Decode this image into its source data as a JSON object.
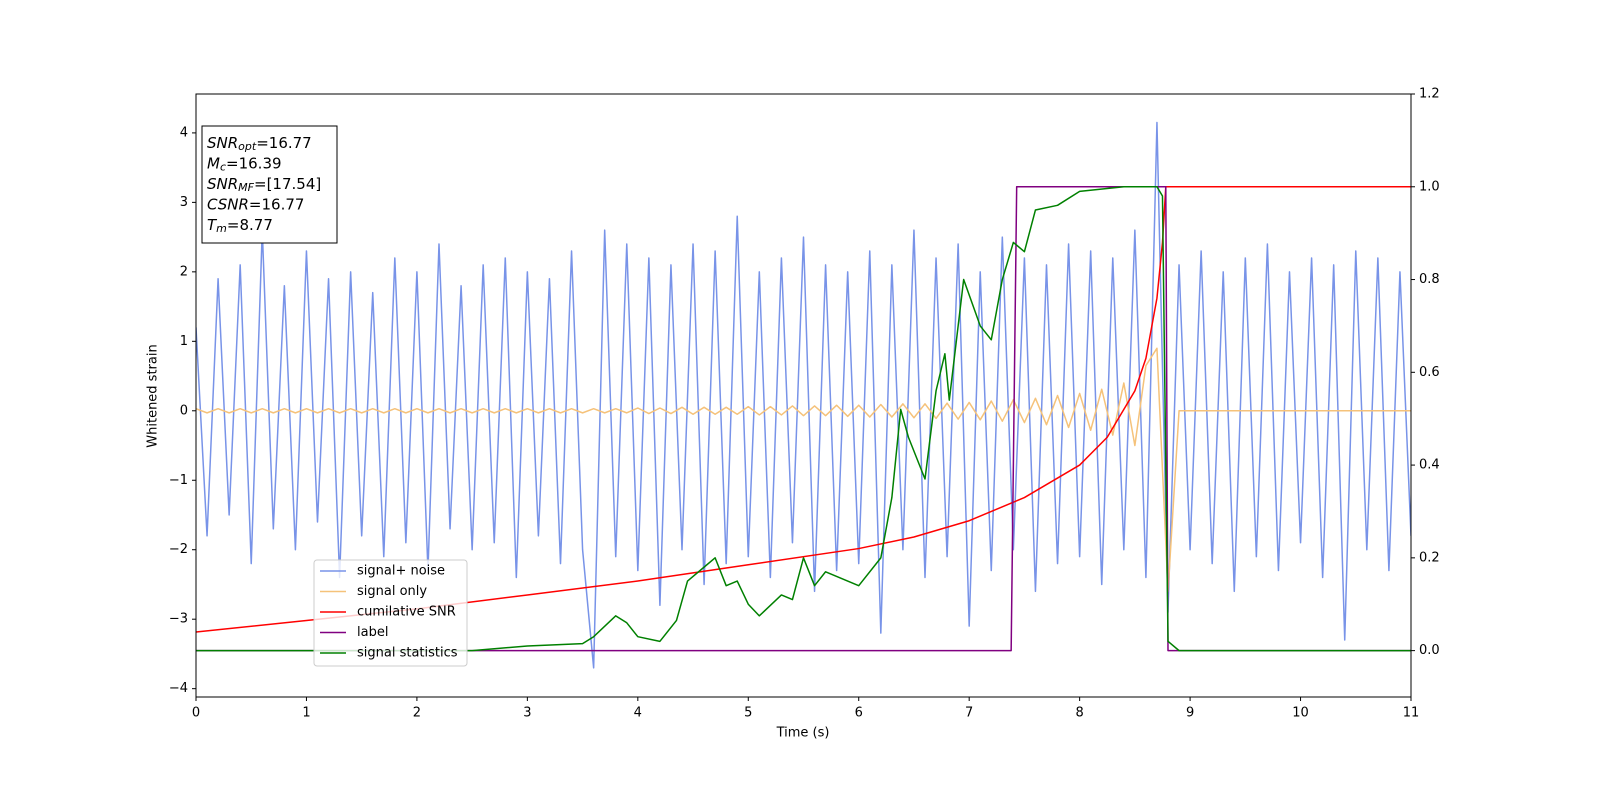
{
  "chart_data": {
    "type": "line",
    "xlabel": "Time (s)",
    "ylabel": "Whitened strain",
    "xlim": [
      0,
      11
    ],
    "ylim": [
      -4.12,
      4.56
    ],
    "y2lim": [
      -0.1,
      1.2
    ],
    "xticks": [
      0,
      1,
      2,
      3,
      4,
      5,
      6,
      7,
      8,
      9,
      10,
      11
    ],
    "yticks": [
      {
        "value": -4,
        "label": "−4"
      },
      {
        "value": -3,
        "label": "−3"
      },
      {
        "value": -2,
        "label": "−2"
      },
      {
        "value": -1,
        "label": "−1"
      },
      0,
      1,
      2,
      3,
      4
    ],
    "y2ticks": [
      {
        "value": 0,
        "label": "0.0"
      },
      {
        "value": 0.2,
        "label": "0.2"
      },
      {
        "value": 0.4,
        "label": "0.4"
      },
      {
        "value": 0.6,
        "label": "0.6"
      },
      {
        "value": 0.8,
        "label": "0.8"
      },
      {
        "value": 1.0,
        "label": "1.0"
      },
      {
        "value": 1.2,
        "label": "1.2"
      }
    ],
    "legend": "lower left",
    "x": [
      0,
      0.1,
      0.2,
      0.3,
      0.4,
      0.5,
      0.6,
      0.7,
      0.8,
      0.9,
      1,
      1.1,
      1.2,
      1.3,
      1.4,
      1.5,
      1.6,
      1.7,
      1.8,
      1.9,
      2,
      2.1,
      2.2,
      2.3,
      2.4,
      2.5,
      2.6,
      2.7,
      2.8,
      2.9,
      3,
      3.1,
      3.2,
      3.3,
      3.4,
      3.5,
      3.6,
      3.7,
      3.8,
      3.9,
      4,
      4.1,
      4.2,
      4.3,
      4.4,
      4.5,
      4.6,
      4.7,
      4.8,
      4.9,
      5,
      5.1,
      5.2,
      5.3,
      5.4,
      5.5,
      5.6,
      5.7,
      5.8,
      5.9,
      6,
      6.1,
      6.2,
      6.3,
      6.4,
      6.5,
      6.6,
      6.7,
      6.8,
      6.9,
      7,
      7.1,
      7.2,
      7.3,
      7.4,
      7.5,
      7.6,
      7.7,
      7.8,
      7.9,
      8,
      8.1,
      8.2,
      8.3,
      8.4,
      8.5,
      8.6,
      8.7,
      8.8,
      8.9,
      9,
      9.1,
      9.2,
      9.3,
      9.4,
      9.5,
      9.6,
      9.7,
      9.8,
      9.9,
      10,
      10.1,
      10.2,
      10.3,
      10.4,
      10.5,
      10.6,
      10.7,
      10.8,
      10.9,
      11
    ],
    "series": [
      {
        "name": "signal+ noise",
        "color": "#7893e8",
        "axis": "y",
        "values": [
          1.2,
          -1.8,
          1.9,
          -1.5,
          2.1,
          -2.2,
          2.6,
          -1.7,
          1.8,
          -2.0,
          2.3,
          -1.6,
          1.9,
          -2.4,
          2.0,
          -1.8,
          1.7,
          -2.1,
          2.2,
          -1.9,
          2.0,
          -2.3,
          2.4,
          -1.7,
          1.8,
          -2.0,
          2.1,
          -1.9,
          2.2,
          -2.4,
          2.0,
          -1.8,
          1.9,
          -2.2,
          2.3,
          -2.0,
          -3.7,
          2.6,
          -2.1,
          2.4,
          -2.3,
          2.2,
          -2.8,
          2.1,
          -2.0,
          2.4,
          -2.5,
          2.3,
          -2.2,
          2.8,
          -2.1,
          2.0,
          -2.4,
          2.2,
          -1.9,
          2.5,
          -2.6,
          2.1,
          -2.3,
          2.0,
          -2.2,
          2.3,
          -3.2,
          2.1,
          -2.0,
          2.6,
          -2.4,
          2.2,
          -2.1,
          2.4,
          -3.1,
          2.0,
          -2.3,
          2.5,
          -2.0,
          2.2,
          -2.6,
          2.1,
          -2.2,
          2.4,
          -2.1,
          2.3,
          -2.5,
          2.2,
          -2.0,
          2.6,
          -2.4,
          4.15,
          -2.9,
          2.1,
          -2.0,
          2.3,
          -2.2,
          2.0,
          -2.6,
          2.2,
          -2.1,
          2.4,
          -2.3,
          2.0,
          -1.9,
          2.2,
          -2.4,
          2.1,
          -3.3,
          2.3,
          -2.0,
          2.2,
          -2.3,
          2.0,
          -1.8
        ]
      },
      {
        "name": "signal only",
        "color": "#f5c27a",
        "axis": "y",
        "values": [
          0.03,
          -0.03,
          0.03,
          -0.03,
          0.03,
          -0.03,
          0.03,
          -0.03,
          0.03,
          -0.03,
          0.03,
          -0.03,
          0.03,
          -0.03,
          0.03,
          -0.03,
          0.03,
          -0.03,
          0.03,
          -0.03,
          0.03,
          -0.03,
          0.03,
          -0.03,
          0.03,
          -0.03,
          0.03,
          -0.03,
          0.03,
          -0.03,
          0.03,
          -0.03,
          0.03,
          -0.03,
          0.03,
          -0.03,
          0.03,
          -0.03,
          0.03,
          -0.03,
          0.04,
          -0.04,
          0.04,
          -0.04,
          0.05,
          -0.05,
          0.05,
          -0.05,
          0.05,
          -0.05,
          0.06,
          -0.06,
          0.06,
          -0.06,
          0.07,
          -0.07,
          0.07,
          -0.07,
          0.08,
          -0.08,
          0.08,
          -0.09,
          0.09,
          -0.09,
          0.1,
          -0.1,
          0.1,
          -0.11,
          0.11,
          -0.12,
          0.12,
          -0.13,
          0.14,
          -0.15,
          0.16,
          -0.17,
          0.18,
          -0.2,
          0.22,
          -0.24,
          0.25,
          -0.28,
          0.31,
          -0.35,
          0.4,
          -0.5,
          0.65,
          0.9,
          -2.6,
          0,
          0,
          0,
          0,
          0,
          0,
          0,
          0,
          0,
          0,
          0,
          0,
          0,
          0,
          0,
          0,
          0,
          0,
          0,
          0,
          0,
          0
        ]
      },
      {
        "name": "cumilative SNR",
        "color": "#ff0000",
        "axis": "y2",
        "x": [
          0,
          1,
          2,
          3,
          4,
          5,
          6,
          6.5,
          7,
          7.5,
          8,
          8.25,
          8.5,
          8.6,
          8.7,
          8.75,
          8.78,
          11
        ],
        "values": [
          0.04,
          0.065,
          0.09,
          0.12,
          0.15,
          0.185,
          0.22,
          0.245,
          0.28,
          0.33,
          0.4,
          0.46,
          0.56,
          0.63,
          0.76,
          0.88,
          1.0,
          1.0
        ]
      },
      {
        "name": "label",
        "color": "#800080",
        "axis": "y2",
        "x": [
          0,
          7.38,
          7.43,
          8.78,
          8.8,
          11
        ],
        "values": [
          0,
          0,
          1,
          1,
          0,
          0
        ]
      },
      {
        "name": "signal statistics",
        "color": "#008000",
        "axis": "y2",
        "x": [
          0,
          2.5,
          3,
          3.5,
          3.6,
          3.8,
          3.9,
          4.0,
          4.2,
          4.35,
          4.45,
          4.6,
          4.7,
          4.8,
          4.9,
          5.0,
          5.1,
          5.3,
          5.4,
          5.5,
          5.6,
          5.7,
          5.9,
          6.0,
          6.2,
          6.3,
          6.38,
          6.45,
          6.6,
          6.7,
          6.78,
          6.82,
          6.95,
          7.1,
          7.2,
          7.3,
          7.4,
          7.5,
          7.6,
          7.8,
          8.0,
          8.4,
          8.7,
          8.75,
          8.8,
          8.9,
          11
        ],
        "values": [
          0,
          0,
          0.01,
          0.015,
          0.03,
          0.075,
          0.06,
          0.03,
          0.02,
          0.065,
          0.15,
          0.18,
          0.2,
          0.14,
          0.15,
          0.1,
          0.075,
          0.12,
          0.11,
          0.2,
          0.14,
          0.17,
          0.15,
          0.14,
          0.2,
          0.33,
          0.52,
          0.46,
          0.37,
          0.56,
          0.64,
          0.54,
          0.8,
          0.7,
          0.67,
          0.8,
          0.88,
          0.86,
          0.95,
          0.96,
          0.99,
          1.0,
          1.0,
          0.98,
          0.02,
          0,
          0
        ]
      }
    ],
    "annotation": [
      {
        "symbol": "SNR",
        "subscript": "opt",
        "value": "=16.77"
      },
      {
        "symbol": "M",
        "subscript": "c",
        "value": "=16.39"
      },
      {
        "symbol": "SNR",
        "subscript": "MF",
        "value": "=[17.54]"
      },
      {
        "symbol": "CSNR",
        "value": "=16.77"
      },
      {
        "symbol": "T",
        "subscript": "m",
        "value": "=8.77"
      }
    ]
  }
}
